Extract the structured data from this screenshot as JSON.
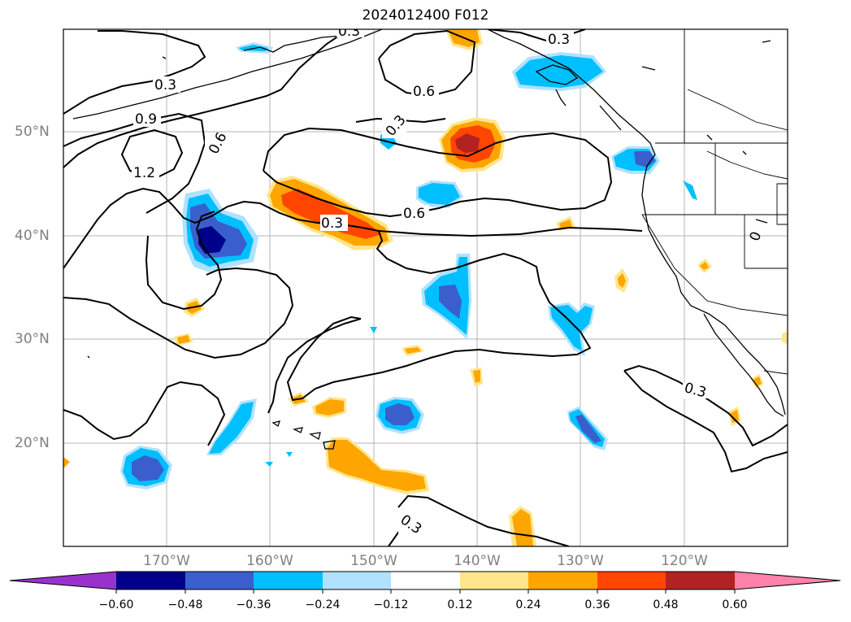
{
  "title": "2024012400 F012",
  "lat_labels": [
    "50°N",
    "40°N",
    "30°N",
    "20°N"
  ],
  "lon_labels": [
    "170°W",
    "160°W",
    "150°W",
    "140°W",
    "130°W",
    "120°W"
  ],
  "colorbar": {
    "ticks": [
      "−0.60",
      "−0.48",
      "−0.36",
      "−0.24",
      "−0.12",
      "0.12",
      "0.24",
      "0.36",
      "0.48",
      "0.60"
    ],
    "colors": [
      "#9932cc",
      "#00008b",
      "#3a5fcd",
      "#00bfff",
      "#b0e2ff",
      "#ffffff",
      "#ffe68a",
      "#ffa500",
      "#ff4500",
      "#b22222",
      "#ff82ab"
    ]
  },
  "contour_labels": [
    "0.3",
    "0.9",
    "1.2",
    "0.6",
    "0.3",
    "0.6",
    "0.3",
    "0.6",
    "0.3",
    "0.3",
    "0.3",
    "0.3",
    "0"
  ]
}
